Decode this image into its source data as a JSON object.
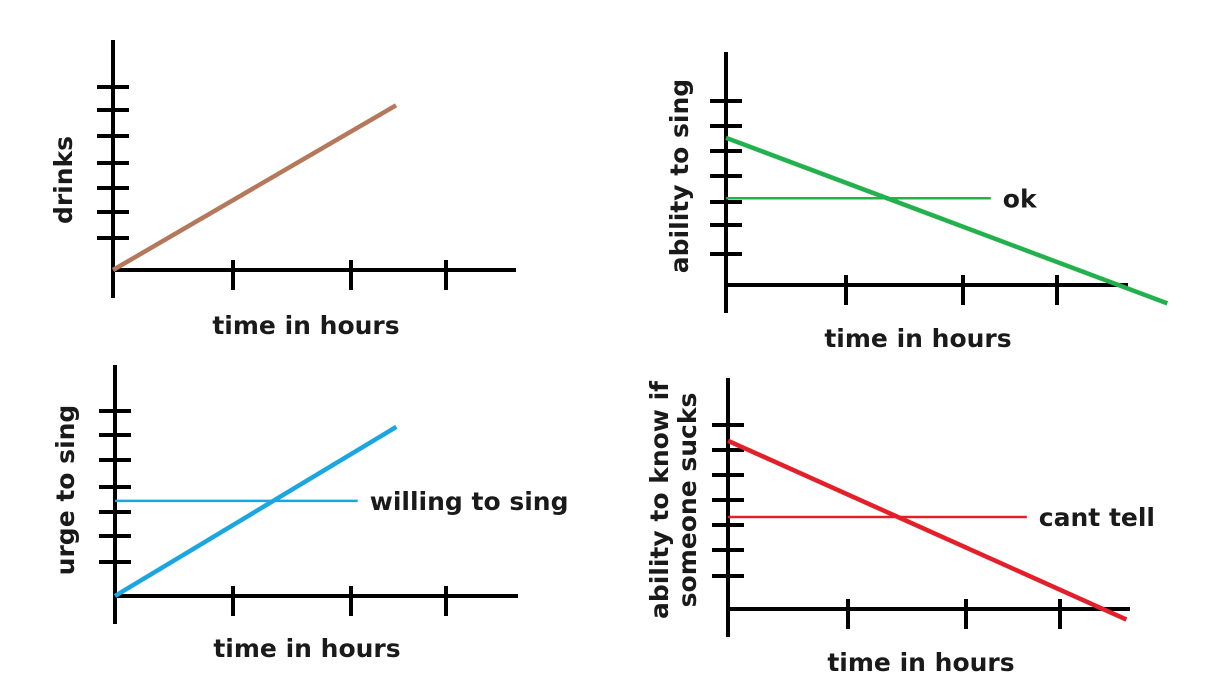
{
  "chart_data": [
    {
      "type": "line",
      "title": "",
      "xlabel": "time in hours",
      "ylabel": "drinks",
      "x_ticks": 3,
      "y_ticks": 7,
      "series": [
        {
          "color": "#b5785a",
          "x": [
            0,
            2.55
          ],
          "y": [
            0,
            6.3
          ]
        }
      ],
      "reference_line": null
    },
    {
      "type": "line",
      "title": "",
      "xlabel": "time in hours",
      "ylabel": "ability to sing",
      "x_ticks": 3,
      "y_ticks": 7,
      "series": [
        {
          "color": "#22b14c",
          "x": [
            0,
            4.0
          ],
          "y": [
            5.6,
            -0.7
          ]
        }
      ],
      "reference_line": {
        "label": "ok",
        "color": "#22b14c",
        "y": 3.3,
        "x_end": 2.4
      }
    },
    {
      "type": "line",
      "title": "",
      "xlabel": "time in hours",
      "ylabel": "urge to sing",
      "x_ticks": 3,
      "y_ticks": 7,
      "series": [
        {
          "color": "#1ba6e0",
          "x": [
            0,
            2.55
          ],
          "y": [
            0,
            6.4
          ]
        }
      ],
      "reference_line": {
        "label": "willing to sing",
        "color": "#1ba6e0",
        "y": 3.6,
        "x_end": 2.2
      }
    },
    {
      "type": "line",
      "title": "",
      "xlabel": "time in hours",
      "ylabel": [
        "ability to know if",
        "someone sucks"
      ],
      "x_ticks": 3,
      "y_ticks": 7,
      "series": [
        {
          "color": "#e3202a",
          "x": [
            0,
            3.6
          ],
          "y": [
            6.4,
            -0.4
          ]
        }
      ],
      "reference_line": {
        "label": "cant tell",
        "color": "#e3202a",
        "y": 3.5,
        "x_end": 2.7
      }
    }
  ]
}
